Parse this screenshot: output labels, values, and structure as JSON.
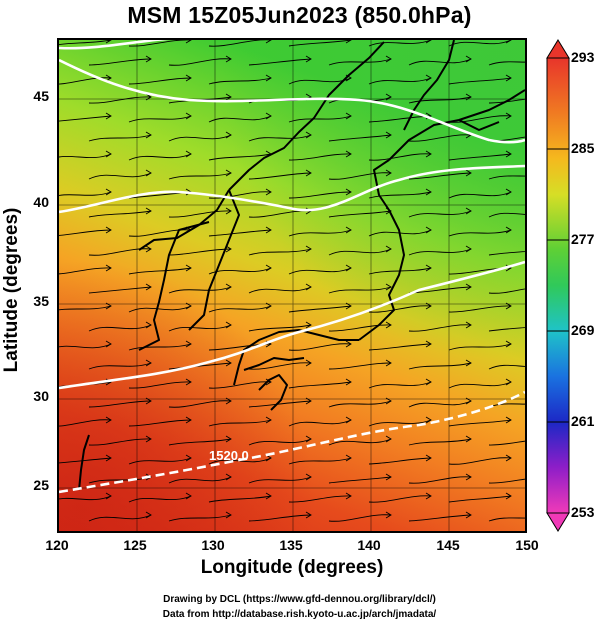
{
  "title": "MSM 15Z05Jun2023 (850.0hPa)",
  "x_axis": {
    "label": "Longitude (degrees)",
    "ticks": [
      "120",
      "125",
      "130",
      "135",
      "140",
      "145",
      "150"
    ]
  },
  "y_axis": {
    "label": "Latitude  (degrees)",
    "ticks": [
      "25",
      "30",
      "35",
      "40",
      "45"
    ]
  },
  "colorbar": {
    "ticks": [
      "253",
      "261",
      "269",
      "277",
      "285",
      "293"
    ]
  },
  "contour_labels": [
    "1520.0"
  ],
  "credit": {
    "line1": "Drawing by DCL (https://www.gfd-dennou.org/library/dcl/)",
    "line2": "Data from http://database.rish.kyoto-u.ac.jp/arch/jmadata/"
  },
  "colors": {
    "warm": "#d92a17",
    "mid": "#f5a21a",
    "cool": "#3ecb2e",
    "contour": "#ffffff"
  }
}
